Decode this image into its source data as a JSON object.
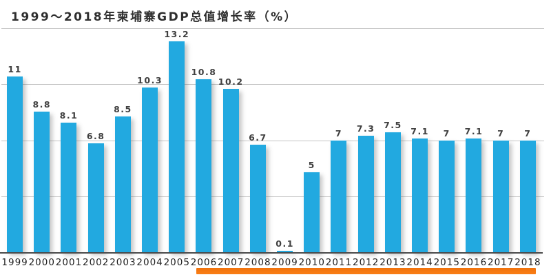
{
  "title": {
    "text": "1999～2018年柬埔寨GDP总值增长率（%）"
  },
  "chart_data": {
    "type": "bar",
    "title": "1999～2018年柬埔寨GDP总值增长率（%）",
    "categories": [
      "1999",
      "2000",
      "2001",
      "2002",
      "2003",
      "2004",
      "2005",
      "2006",
      "2007",
      "2008",
      "2009",
      "2010",
      "2011",
      "2012",
      "2013",
      "2014",
      "2015",
      "2016",
      "2017",
      "2018"
    ],
    "values": [
      11,
      8.8,
      8.1,
      6.8,
      8.5,
      10.3,
      13.2,
      10.8,
      10.2,
      6.7,
      0.1,
      5,
      7,
      7.3,
      7.5,
      7.1,
      7,
      7.1,
      7,
      7
    ],
    "xlabel": "",
    "ylabel": "",
    "ylim": [
      0,
      14
    ],
    "gridline_values": [
      3.5,
      7,
      10.5,
      14
    ],
    "grid": true,
    "legend_position": "none",
    "colors": {
      "bar": "#22A9E0",
      "bar_label": "#404040",
      "gridline": "#c3c3c3",
      "axis": "#4a4a4a",
      "background": "#ffffff",
      "title": "#2e2e2e",
      "underline": "#F0720C"
    },
    "annotations": [
      {
        "type": "underline",
        "from_category": "2006",
        "to_category": "2018",
        "color": "#F0720C"
      }
    ]
  }
}
